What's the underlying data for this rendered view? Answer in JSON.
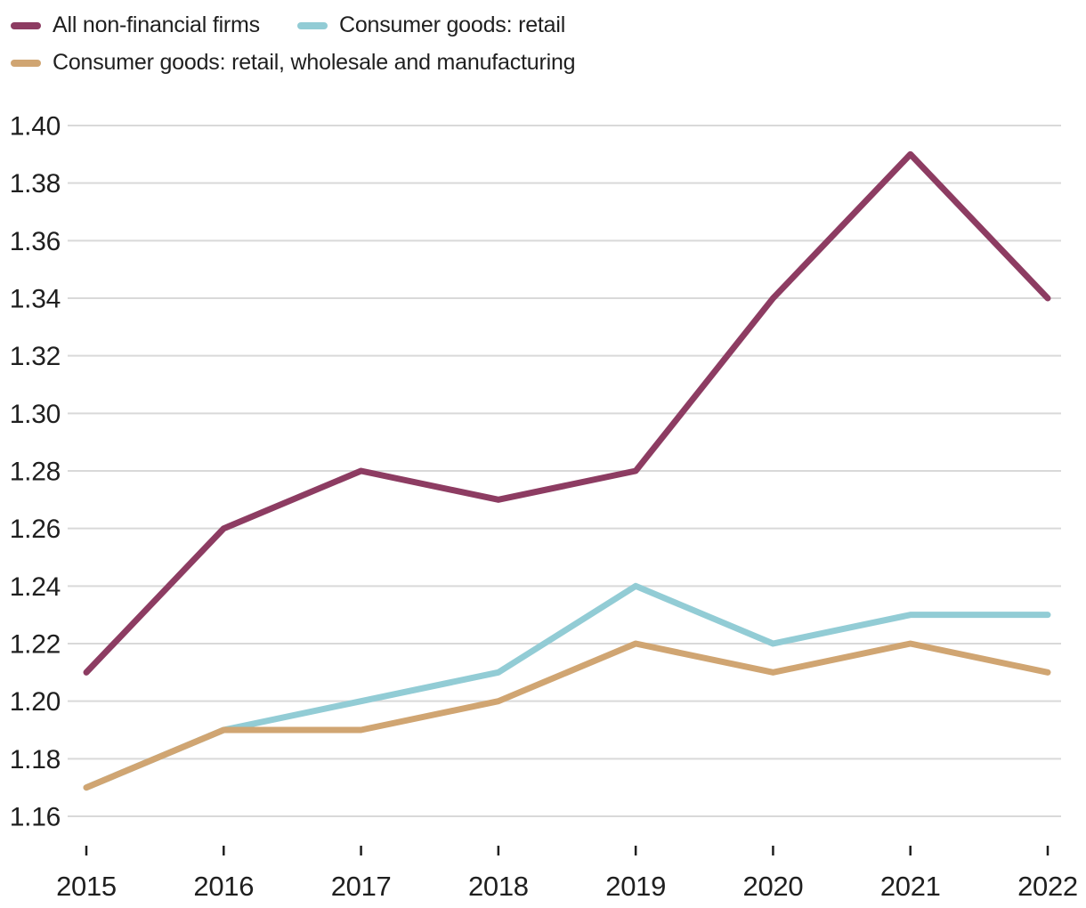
{
  "colors": {
    "text": "#1f1f1f",
    "grid": "#d9d9d9",
    "background": "#ffffff"
  },
  "chart_data": {
    "type": "line",
    "x": [
      2015,
      2016,
      2017,
      2018,
      2019,
      2020,
      2021,
      2022
    ],
    "series": [
      {
        "name": "All non-financial firms",
        "color": "#8d3c62",
        "values": [
          1.21,
          1.26,
          1.28,
          1.27,
          1.28,
          1.34,
          1.39,
          1.34
        ]
      },
      {
        "name": "Consumer goods: retail",
        "color": "#92ccd5",
        "values": [
          1.17,
          1.19,
          1.2,
          1.21,
          1.24,
          1.22,
          1.23,
          1.23
        ]
      },
      {
        "name": "Consumer goods: retail, wholesale and manufacturing",
        "color": "#d0a572",
        "values": [
          1.17,
          1.19,
          1.19,
          1.2,
          1.22,
          1.21,
          1.22,
          1.21
        ]
      }
    ],
    "ylim": [
      1.16,
      1.4
    ],
    "yticks": [
      "1.16",
      "1.18",
      "1.20",
      "1.22",
      "1.24",
      "1.26",
      "1.28",
      "1.30",
      "1.32",
      "1.34",
      "1.36",
      "1.38",
      "1.40"
    ],
    "xlabel": "",
    "ylabel": "",
    "grid": "horizontal",
    "legend_position": "top-left"
  }
}
